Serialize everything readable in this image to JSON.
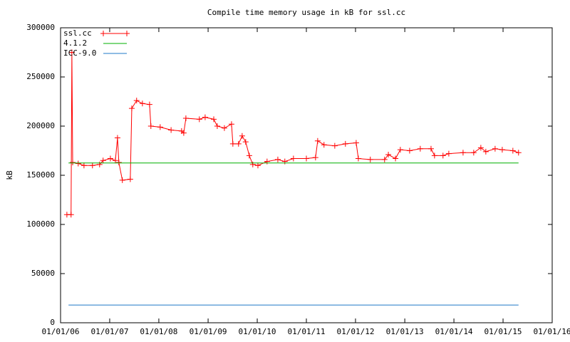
{
  "chart_data": {
    "type": "line",
    "title": "Compile time memory usage in kB for ssl.cc",
    "y_label": "kB",
    "xlim": [
      "2006-01-01",
      "2016-01-01"
    ],
    "xticks": [
      {
        "value": "2006-01-01",
        "label": "01/01/06"
      },
      {
        "value": "2007-01-01",
        "label": "01/01/07"
      },
      {
        "value": "2008-01-01",
        "label": "01/01/08"
      },
      {
        "value": "2009-01-01",
        "label": "01/01/09"
      },
      {
        "value": "2010-01-01",
        "label": "01/01/10"
      },
      {
        "value": "2011-01-01",
        "label": "01/01/11"
      },
      {
        "value": "2012-01-01",
        "label": "01/01/12"
      },
      {
        "value": "2013-01-01",
        "label": "01/01/13"
      },
      {
        "value": "2014-01-01",
        "label": "01/01/14"
      },
      {
        "value": "2015-01-01",
        "label": "01/01/15"
      },
      {
        "value": "2016-01-01",
        "label": "01/01/16"
      }
    ],
    "ylim": [
      0,
      300000
    ],
    "yticks": [
      0,
      50000,
      100000,
      150000,
      200000,
      250000,
      300000
    ],
    "legend": "top-left",
    "series": [
      {
        "name": "ssl.cc",
        "color": "#ff0000",
        "markers": true,
        "x": [
          "2006-02-17",
          "2006-03-20",
          "2006-03-26",
          "2006-04-01",
          "2006-05-12",
          "2006-06-24",
          "2006-08-26",
          "2006-10-18",
          "2006-11-13",
          "2007-01-06",
          "2007-02-12",
          "2007-02-28",
          "2007-03-10",
          "2007-04-05",
          "2007-06-03",
          "2007-06-14",
          "2007-07-20",
          "2007-09-01",
          "2007-10-24",
          "2007-11-03",
          "2008-01-11",
          "2008-04-01",
          "2008-06-18",
          "2008-07-04",
          "2008-07-20",
          "2008-10-28",
          "2008-12-10",
          "2009-02-12",
          "2009-03-10",
          "2009-05-02",
          "2009-06-24",
          "2009-07-04",
          "2009-08-15",
          "2009-09-11",
          "2009-10-07",
          "2009-11-03",
          "2009-11-29",
          "2010-01-06",
          "2010-03-15",
          "2010-06-03",
          "2010-07-25",
          "2010-09-27",
          "2011-01-01",
          "2011-03-10",
          "2011-03-26",
          "2011-05-12",
          "2011-07-31",
          "2011-10-18",
          "2012-01-06",
          "2012-01-22",
          "2012-04-20",
          "2012-08-04",
          "2012-09-01",
          "2012-10-24",
          "2012-11-29",
          "2013-02-06",
          "2013-04-26",
          "2013-07-15",
          "2013-08-10",
          "2013-10-12",
          "2013-11-24",
          "2014-03-10",
          "2014-05-28",
          "2014-07-20",
          "2014-08-26",
          "2014-11-03",
          "2014-12-26",
          "2015-03-15",
          "2015-04-26"
        ],
        "values": [
          110000,
          110000,
          275000,
          163000,
          162000,
          160000,
          160000,
          161000,
          165000,
          167000,
          165000,
          188000,
          163000,
          145000,
          146000,
          218000,
          226000,
          223000,
          222000,
          200000,
          199000,
          196000,
          195000,
          193000,
          208000,
          207000,
          209000,
          207000,
          200000,
          198000,
          202000,
          182000,
          182000,
          190000,
          184000,
          170000,
          161000,
          160000,
          164000,
          166000,
          164000,
          167000,
          167000,
          168000,
          185000,
          181000,
          180000,
          182000,
          183000,
          167000,
          166000,
          166000,
          171000,
          167000,
          176000,
          175000,
          177000,
          177000,
          170000,
          170000,
          172000,
          173000,
          173000,
          178000,
          174000,
          177000,
          176000,
          175000,
          173000
        ]
      },
      {
        "name": "4.1.2",
        "color": "#00b000",
        "markers": false,
        "x": [
          "2006-03-01",
          "2015-04-26"
        ],
        "values": [
          162500,
          162500
        ]
      },
      {
        "name": "ICC-9.0",
        "color": "#1f78c8",
        "markers": false,
        "x": [
          "2006-03-01",
          "2015-04-26"
        ],
        "values": [
          18000,
          18000
        ]
      }
    ]
  }
}
